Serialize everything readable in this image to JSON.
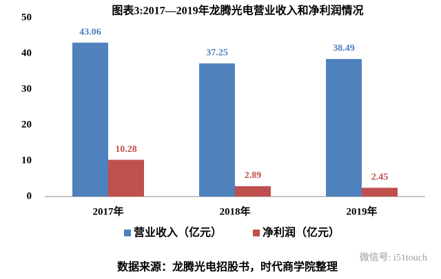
{
  "chart_data": {
    "type": "bar",
    "title": "图表3:2017—2019年龙腾光电营业收入和净利润情况",
    "categories": [
      "2017年",
      "2018年",
      "2019年"
    ],
    "series": [
      {
        "name": "营业收入（亿元）",
        "color": "#4f81bd",
        "values": [
          43.06,
          37.25,
          38.49
        ]
      },
      {
        "name": "净利润（亿元）",
        "color": "#c0504d",
        "values": [
          10.28,
          2.89,
          2.45
        ]
      }
    ],
    "ylim": [
      0,
      50
    ],
    "yticks": [
      0,
      10,
      20,
      30,
      40,
      50
    ],
    "legend": "bottom",
    "source": "数据来源：龙腾光电招股书，时代商学院整理",
    "watermark": "微信号: i51touch"
  }
}
